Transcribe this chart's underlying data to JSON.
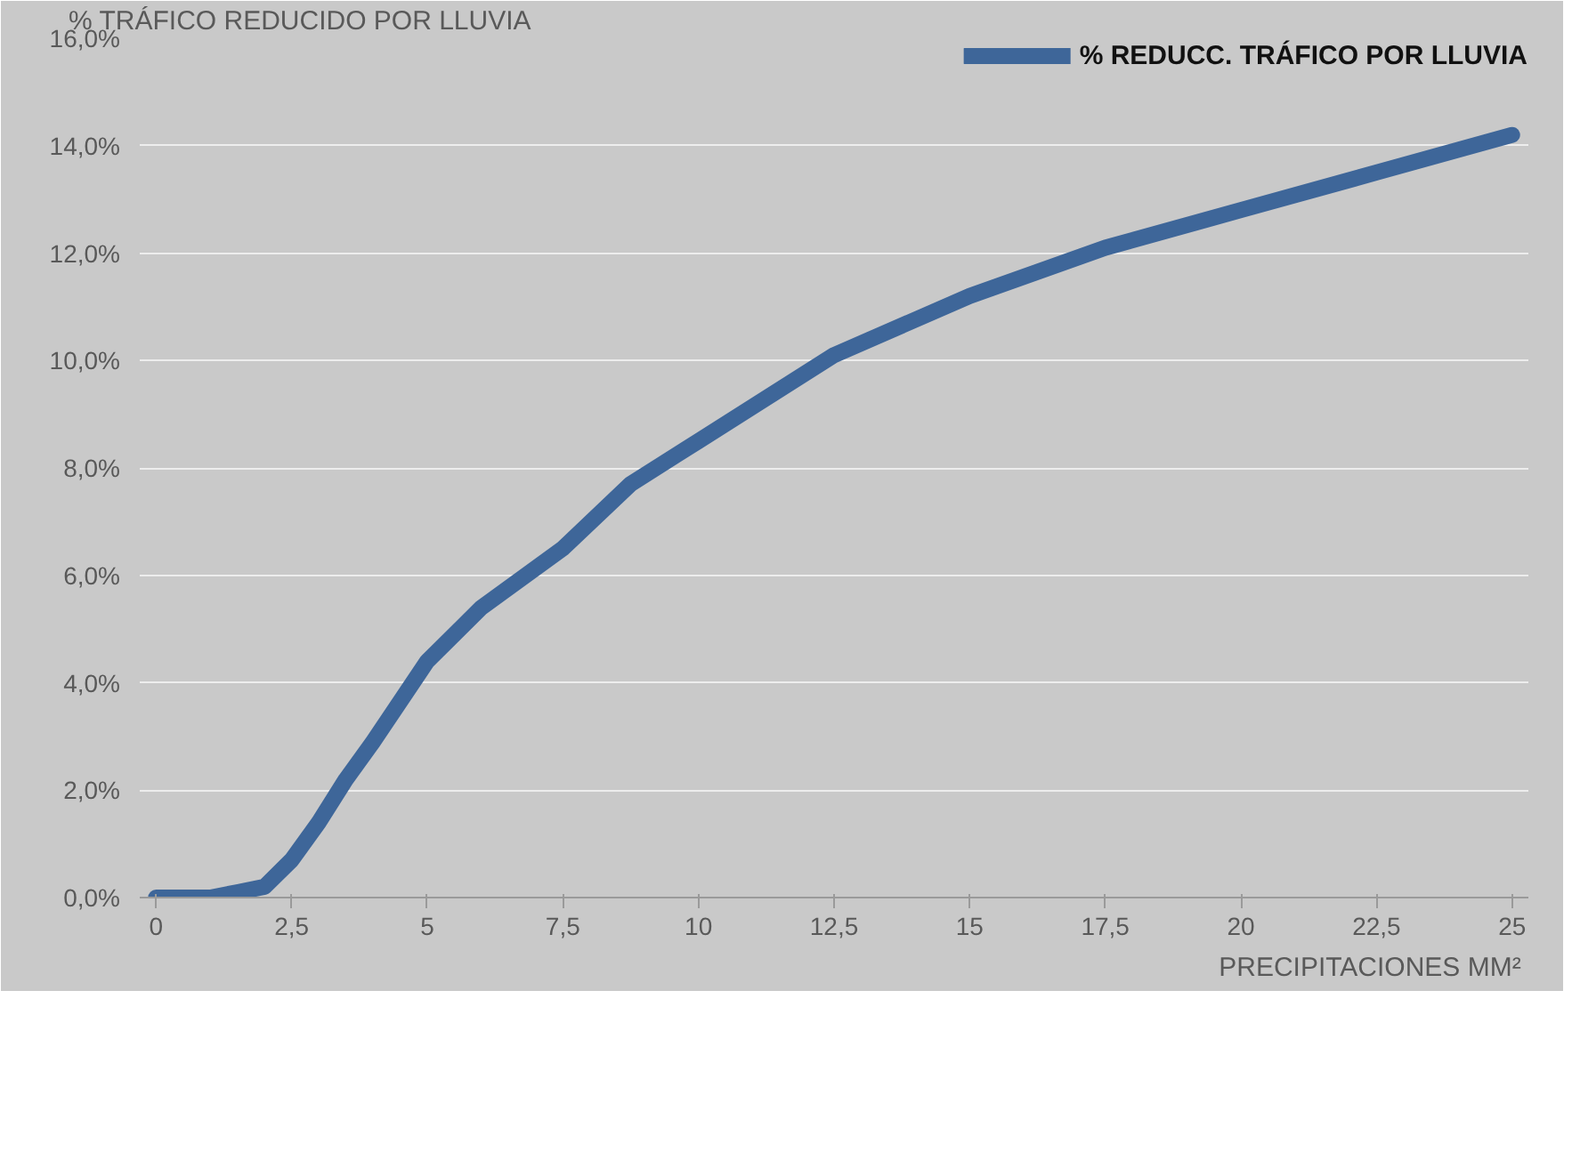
{
  "chart_data": {
    "type": "line",
    "ylabel": "% TRÁFICO REDUCIDO POR LLUVIA",
    "xlabel": "PRECIPITACIONES  MM²",
    "x": [
      0,
      0.5,
      1,
      1.5,
      2,
      2.5,
      3,
      3.5,
      4,
      5,
      6,
      7.5,
      8.75,
      10,
      12.5,
      15,
      17.5,
      20,
      22.5,
      25
    ],
    "series": [
      {
        "name": "% REDUCC. TRÁFICO POR LLUVIA",
        "color": "#3e6699",
        "values": [
          0,
          0,
          0,
          0.1,
          0.2,
          0.7,
          1.4,
          2.2,
          2.9,
          4.4,
          5.4,
          6.5,
          7.7,
          8.5,
          10.1,
          11.2,
          12.1,
          12.8,
          13.5,
          14.2
        ]
      }
    ],
    "xlim": [
      -0.3,
      25.3
    ],
    "xticks": [
      0,
      {
        "value": 2.5,
        "label": "2,5"
      },
      5,
      {
        "value": 7.5,
        "label": "7,5"
      },
      10,
      {
        "value": 12.5,
        "label": "12,5"
      },
      15,
      {
        "value": 17.5,
        "label": "17,5"
      },
      20,
      {
        "value": 22.5,
        "label": "22,5"
      },
      25
    ],
    "ylim": [
      0,
      16
    ],
    "yticks": [
      {
        "value": 0,
        "label": "0,0%"
      },
      {
        "value": 2,
        "label": "2,0%"
      },
      {
        "value": 4,
        "label": "4,0%"
      },
      {
        "value": 6,
        "label": "6,0%"
      },
      {
        "value": 8,
        "label": "8,0%"
      },
      {
        "value": 10,
        "label": "10,0%"
      },
      {
        "value": 12,
        "label": "12,0%"
      },
      {
        "value": 14,
        "label": "14,0%"
      },
      {
        "value": 16,
        "label": "16,0%"
      }
    ],
    "grid": "y",
    "legend": "top right",
    "line_style": "solid",
    "marker": "none"
  }
}
